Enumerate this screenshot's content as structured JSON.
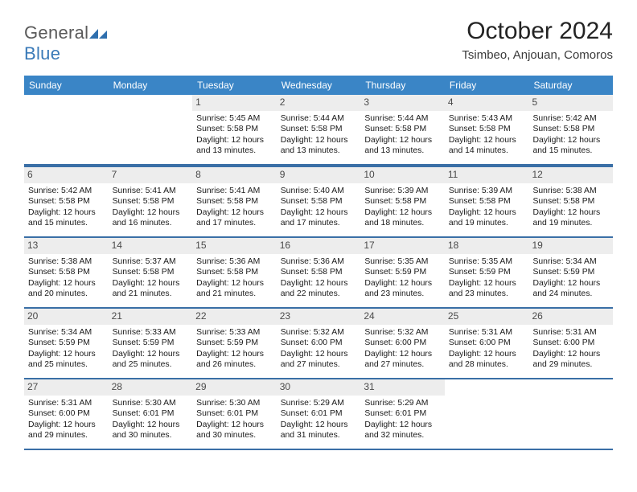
{
  "logo": {
    "word1": "General",
    "word2": "Blue"
  },
  "title": "October 2024",
  "location": "Tsimbeo, Anjouan, Comoros",
  "day_names": [
    "Sunday",
    "Monday",
    "Tuesday",
    "Wednesday",
    "Thursday",
    "Friday",
    "Saturday"
  ],
  "colors": {
    "header_bar": "#3a85c6",
    "week_divider": "#3a6fa6",
    "daynum_bg": "#ededed",
    "logo_gray": "#5a5a5a",
    "logo_blue": "#3a7ab8"
  },
  "weeks": [
    [
      {
        "empty": true
      },
      {
        "empty": true
      },
      {
        "n": "1",
        "sunrise": "Sunrise: 5:45 AM",
        "sunset": "Sunset: 5:58 PM",
        "daylight": "Daylight: 12 hours and 13 minutes."
      },
      {
        "n": "2",
        "sunrise": "Sunrise: 5:44 AM",
        "sunset": "Sunset: 5:58 PM",
        "daylight": "Daylight: 12 hours and 13 minutes."
      },
      {
        "n": "3",
        "sunrise": "Sunrise: 5:44 AM",
        "sunset": "Sunset: 5:58 PM",
        "daylight": "Daylight: 12 hours and 13 minutes."
      },
      {
        "n": "4",
        "sunrise": "Sunrise: 5:43 AM",
        "sunset": "Sunset: 5:58 PM",
        "daylight": "Daylight: 12 hours and 14 minutes."
      },
      {
        "n": "5",
        "sunrise": "Sunrise: 5:42 AM",
        "sunset": "Sunset: 5:58 PM",
        "daylight": "Daylight: 12 hours and 15 minutes."
      }
    ],
    [
      {
        "n": "6",
        "sunrise": "Sunrise: 5:42 AM",
        "sunset": "Sunset: 5:58 PM",
        "daylight": "Daylight: 12 hours and 15 minutes."
      },
      {
        "n": "7",
        "sunrise": "Sunrise: 5:41 AM",
        "sunset": "Sunset: 5:58 PM",
        "daylight": "Daylight: 12 hours and 16 minutes."
      },
      {
        "n": "8",
        "sunrise": "Sunrise: 5:41 AM",
        "sunset": "Sunset: 5:58 PM",
        "daylight": "Daylight: 12 hours and 17 minutes."
      },
      {
        "n": "9",
        "sunrise": "Sunrise: 5:40 AM",
        "sunset": "Sunset: 5:58 PM",
        "daylight": "Daylight: 12 hours and 17 minutes."
      },
      {
        "n": "10",
        "sunrise": "Sunrise: 5:39 AM",
        "sunset": "Sunset: 5:58 PM",
        "daylight": "Daylight: 12 hours and 18 minutes."
      },
      {
        "n": "11",
        "sunrise": "Sunrise: 5:39 AM",
        "sunset": "Sunset: 5:58 PM",
        "daylight": "Daylight: 12 hours and 19 minutes."
      },
      {
        "n": "12",
        "sunrise": "Sunrise: 5:38 AM",
        "sunset": "Sunset: 5:58 PM",
        "daylight": "Daylight: 12 hours and 19 minutes."
      }
    ],
    [
      {
        "n": "13",
        "sunrise": "Sunrise: 5:38 AM",
        "sunset": "Sunset: 5:58 PM",
        "daylight": "Daylight: 12 hours and 20 minutes."
      },
      {
        "n": "14",
        "sunrise": "Sunrise: 5:37 AM",
        "sunset": "Sunset: 5:58 PM",
        "daylight": "Daylight: 12 hours and 21 minutes."
      },
      {
        "n": "15",
        "sunrise": "Sunrise: 5:36 AM",
        "sunset": "Sunset: 5:58 PM",
        "daylight": "Daylight: 12 hours and 21 minutes."
      },
      {
        "n": "16",
        "sunrise": "Sunrise: 5:36 AM",
        "sunset": "Sunset: 5:58 PM",
        "daylight": "Daylight: 12 hours and 22 minutes."
      },
      {
        "n": "17",
        "sunrise": "Sunrise: 5:35 AM",
        "sunset": "Sunset: 5:59 PM",
        "daylight": "Daylight: 12 hours and 23 minutes."
      },
      {
        "n": "18",
        "sunrise": "Sunrise: 5:35 AM",
        "sunset": "Sunset: 5:59 PM",
        "daylight": "Daylight: 12 hours and 23 minutes."
      },
      {
        "n": "19",
        "sunrise": "Sunrise: 5:34 AM",
        "sunset": "Sunset: 5:59 PM",
        "daylight": "Daylight: 12 hours and 24 minutes."
      }
    ],
    [
      {
        "n": "20",
        "sunrise": "Sunrise: 5:34 AM",
        "sunset": "Sunset: 5:59 PM",
        "daylight": "Daylight: 12 hours and 25 minutes."
      },
      {
        "n": "21",
        "sunrise": "Sunrise: 5:33 AM",
        "sunset": "Sunset: 5:59 PM",
        "daylight": "Daylight: 12 hours and 25 minutes."
      },
      {
        "n": "22",
        "sunrise": "Sunrise: 5:33 AM",
        "sunset": "Sunset: 5:59 PM",
        "daylight": "Daylight: 12 hours and 26 minutes."
      },
      {
        "n": "23",
        "sunrise": "Sunrise: 5:32 AM",
        "sunset": "Sunset: 6:00 PM",
        "daylight": "Daylight: 12 hours and 27 minutes."
      },
      {
        "n": "24",
        "sunrise": "Sunrise: 5:32 AM",
        "sunset": "Sunset: 6:00 PM",
        "daylight": "Daylight: 12 hours and 27 minutes."
      },
      {
        "n": "25",
        "sunrise": "Sunrise: 5:31 AM",
        "sunset": "Sunset: 6:00 PM",
        "daylight": "Daylight: 12 hours and 28 minutes."
      },
      {
        "n": "26",
        "sunrise": "Sunrise: 5:31 AM",
        "sunset": "Sunset: 6:00 PM",
        "daylight": "Daylight: 12 hours and 29 minutes."
      }
    ],
    [
      {
        "n": "27",
        "sunrise": "Sunrise: 5:31 AM",
        "sunset": "Sunset: 6:00 PM",
        "daylight": "Daylight: 12 hours and 29 minutes."
      },
      {
        "n": "28",
        "sunrise": "Sunrise: 5:30 AM",
        "sunset": "Sunset: 6:01 PM",
        "daylight": "Daylight: 12 hours and 30 minutes."
      },
      {
        "n": "29",
        "sunrise": "Sunrise: 5:30 AM",
        "sunset": "Sunset: 6:01 PM",
        "daylight": "Daylight: 12 hours and 30 minutes."
      },
      {
        "n": "30",
        "sunrise": "Sunrise: 5:29 AM",
        "sunset": "Sunset: 6:01 PM",
        "daylight": "Daylight: 12 hours and 31 minutes."
      },
      {
        "n": "31",
        "sunrise": "Sunrise: 5:29 AM",
        "sunset": "Sunset: 6:01 PM",
        "daylight": "Daylight: 12 hours and 32 minutes."
      },
      {
        "empty": true
      },
      {
        "empty": true
      }
    ]
  ]
}
